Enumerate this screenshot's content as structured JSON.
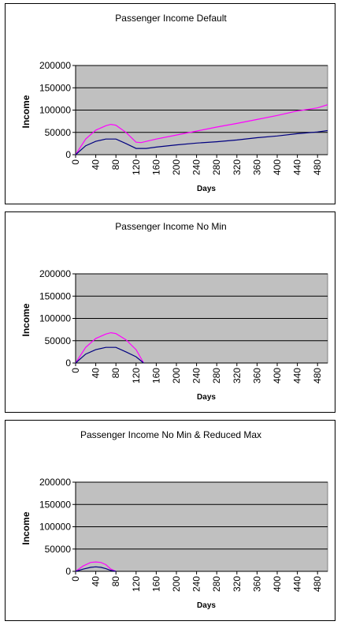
{
  "chart_data": [
    {
      "type": "line",
      "title": "Passenger Income Default",
      "xlabel": "Days",
      "ylabel": "Income",
      "xlim": [
        0,
        500
      ],
      "ylim": [
        0,
        200000
      ],
      "yticks": [
        "0",
        "50000",
        "100000",
        "150000",
        "200000"
      ],
      "xticks": [
        "0",
        "40",
        "80",
        "120",
        "160",
        "200",
        "240",
        "280",
        "320",
        "360",
        "400",
        "440",
        "480"
      ],
      "grid": true,
      "plot_background": "#c0c0c0",
      "series": [
        {
          "color": "#ff00ff",
          "x": [
            0,
            20,
            40,
            60,
            70,
            80,
            100,
            120,
            130,
            160,
            200,
            240,
            280,
            320,
            360,
            400,
            440,
            480,
            500
          ],
          "y": [
            0,
            35000,
            55000,
            65000,
            68000,
            66000,
            50000,
            28000,
            27000,
            35000,
            44000,
            53000,
            62000,
            70000,
            79000,
            88000,
            98000,
            105000,
            112000
          ]
        },
        {
          "color": "#000080",
          "x": [
            0,
            20,
            40,
            60,
            80,
            100,
            120,
            140,
            160,
            200,
            240,
            280,
            320,
            360,
            400,
            440,
            480,
            500
          ],
          "y": [
            0,
            20000,
            30000,
            35000,
            35000,
            25000,
            14000,
            14000,
            17000,
            22000,
            26000,
            29000,
            33000,
            38000,
            42000,
            47000,
            51000,
            54000
          ]
        }
      ]
    },
    {
      "type": "line",
      "title": "Passenger Income No Min",
      "xlabel": "Days",
      "ylabel": "Income",
      "xlim": [
        0,
        500
      ],
      "ylim": [
        0,
        200000
      ],
      "yticks": [
        "0",
        "50000",
        "100000",
        "150000",
        "200000"
      ],
      "xticks": [
        "0",
        "40",
        "80",
        "120",
        "160",
        "200",
        "240",
        "280",
        "320",
        "360",
        "400",
        "440",
        "480"
      ],
      "grid": true,
      "plot_background": "#c0c0c0",
      "series": [
        {
          "color": "#ff00ff",
          "x": [
            0,
            20,
            40,
            60,
            70,
            80,
            100,
            120,
            135
          ],
          "y": [
            0,
            35000,
            55000,
            65000,
            68000,
            66000,
            52000,
            30000,
            0
          ]
        },
        {
          "color": "#000080",
          "x": [
            0,
            20,
            40,
            60,
            80,
            100,
            120,
            135
          ],
          "y": [
            0,
            20000,
            30000,
            35000,
            35000,
            25000,
            14000,
            0
          ]
        }
      ]
    },
    {
      "type": "line",
      "title": "Passenger Income No Min & Reduced Max",
      "xlabel": "Days",
      "ylabel": "Income",
      "xlim": [
        0,
        500
      ],
      "ylim": [
        0,
        200000
      ],
      "yticks": [
        "0",
        "50000",
        "100000",
        "150000",
        "200000"
      ],
      "xticks": [
        "0",
        "40",
        "80",
        "120",
        "160",
        "200",
        "240",
        "280",
        "320",
        "360",
        "400",
        "440",
        "480"
      ],
      "grid": true,
      "plot_background": "#c0c0c0",
      "series": [
        {
          "color": "#ff00ff",
          "x": [
            0,
            15,
            30,
            40,
            50,
            60,
            70,
            80
          ],
          "y": [
            0,
            12000,
            20000,
            21000,
            20000,
            15000,
            5000,
            0
          ]
        },
        {
          "color": "#000080",
          "x": [
            0,
            15,
            30,
            40,
            50,
            60,
            70,
            80
          ],
          "y": [
            0,
            5000,
            9000,
            10000,
            9000,
            6000,
            2000,
            0
          ]
        }
      ]
    }
  ]
}
